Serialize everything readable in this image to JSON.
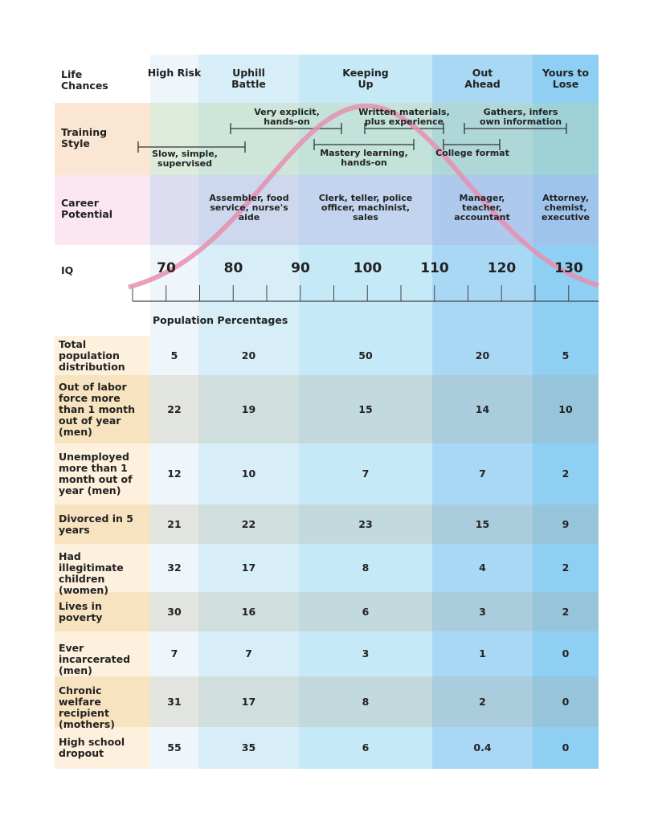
{
  "header": {
    "label": "Life Chances",
    "columns": [
      "High Risk",
      "Uphill Battle",
      "Keeping Up",
      "Out Ahead",
      "Yours to Lose"
    ]
  },
  "training_style": {
    "label": "Training Style",
    "items": [
      "Slow, simple, supervised",
      "Very explicit, hands-on",
      "Mastery learning, hands-on",
      "Written materials, plus experience",
      "College format",
      "Gathers, infers own information"
    ]
  },
  "career_potential": {
    "label": "Career Potential",
    "items": [
      "Assembler, food service, nurse's aide",
      "Clerk, teller, police officer, machinist, sales",
      "Manager, teacher, accountant",
      "Attorney, chemist, executive"
    ]
  },
  "iq": {
    "label": "IQ",
    "ticks": [
      70,
      80,
      90,
      100,
      110,
      120,
      130
    ]
  },
  "population_percentages": "Population Percentages",
  "table": {
    "rows": [
      [
        "Total population distribution",
        5,
        20,
        50,
        20,
        5
      ],
      [
        "Out of labor force more than 1 month out of year (men)",
        22,
        19,
        15,
        14,
        10
      ],
      [
        "Unemployed more than 1 month out of year (men)",
        12,
        10,
        7,
        7,
        2
      ],
      [
        "Divorced in 5 years",
        21,
        22,
        23,
        15,
        9
      ],
      [
        "Had illegitimate children (women)",
        32,
        17,
        8,
        4,
        2
      ],
      [
        "Lives in poverty",
        30,
        16,
        6,
        3,
        2
      ],
      [
        "Ever incarcerated (men)",
        7,
        7,
        3,
        1,
        0
      ],
      [
        "Chronic welfare recipient (mothers)",
        31,
        17,
        8,
        2,
        0
      ],
      [
        "High school dropout",
        55,
        35,
        6,
        0.4,
        0
      ]
    ]
  }
}
